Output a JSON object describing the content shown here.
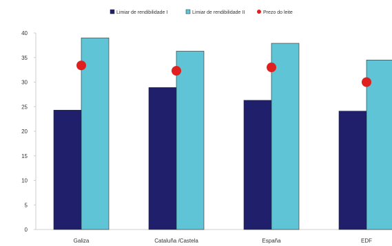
{
  "chart_data": {
    "type": "bar",
    "categories": [
      "Galiza",
      "Cataluña /Castela",
      "España",
      "EDF"
    ],
    "series": [
      {
        "name": "Limiar de rendibilidade I",
        "kind": "bar",
        "color": "#1f1f6b",
        "values": [
          24.3,
          28.9,
          26.3,
          24.1
        ]
      },
      {
        "name": "Limiar de rendibilidade II",
        "kind": "bar",
        "color": "#5ec4d6",
        "values": [
          39.0,
          36.3,
          37.9,
          34.5
        ]
      },
      {
        "name": "Prezo do leite",
        "kind": "point",
        "color": "#e01f1f",
        "values": [
          33.4,
          32.3,
          33.0,
          30.0
        ]
      }
    ],
    "ylim": [
      0,
      40
    ],
    "yticks": [
      0,
      5,
      10,
      15,
      20,
      25,
      30,
      35,
      40
    ],
    "legend_position": "top",
    "grid": false
  }
}
